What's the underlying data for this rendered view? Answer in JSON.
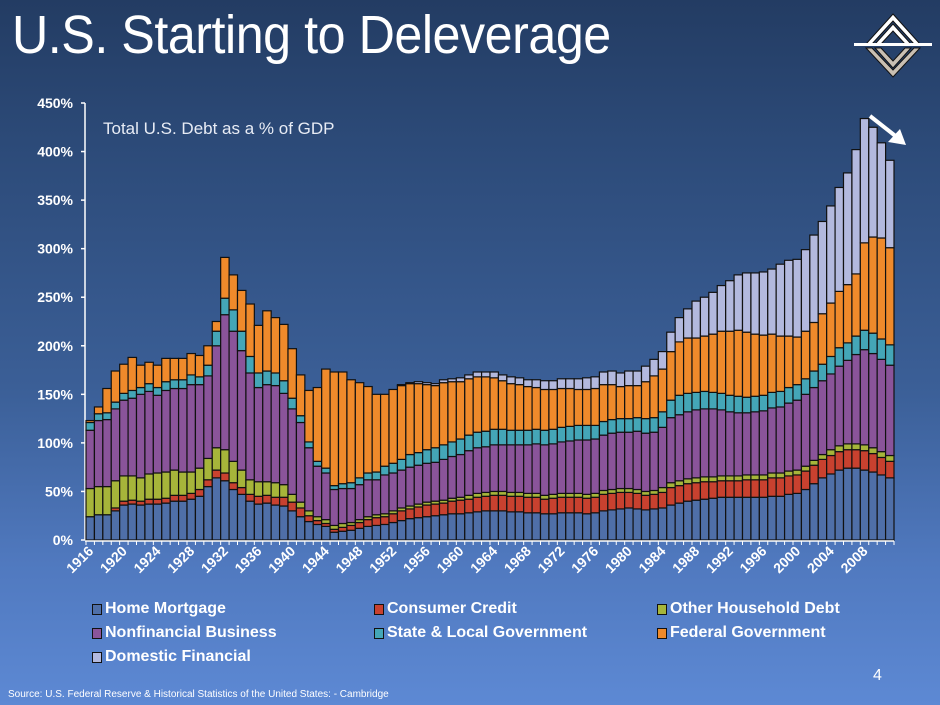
{
  "slide": {
    "title": "U.S. Starting to Deleverage",
    "page_number": "4",
    "source": "Source: U.S.  Federal Reserve & Historical Statistics of the United States: - Cambridge",
    "logo_icon": "diamond-chevron-logo",
    "trend_icon": "down-right-arrow"
  },
  "chart_data": {
    "type": "bar",
    "stacked": true,
    "title": "Total U.S. Debt as a % of GDP",
    "xlabel": "",
    "ylabel": "",
    "ylim": [
      0,
      450
    ],
    "yticks": [
      0,
      50,
      100,
      150,
      200,
      250,
      300,
      350,
      400,
      450
    ],
    "ytick_labels": [
      "0%",
      "50%",
      "100%",
      "150%",
      "200%",
      "250%",
      "300%",
      "350%",
      "400%",
      "450%"
    ],
    "x_tick_labels": [
      "1916",
      "1920",
      "1924",
      "1928",
      "1932",
      "1936",
      "1940",
      "1944",
      "1948",
      "1952",
      "1956",
      "1960",
      "1964",
      "1968",
      "1972",
      "1976",
      "1980",
      "1984",
      "1988",
      "1992",
      "1996",
      "2000",
      "2004",
      "2008"
    ],
    "grid": false,
    "legend_position": "bottom",
    "categories": [
      "1916",
      "1917",
      "1918",
      "1919",
      "1920",
      "1921",
      "1922",
      "1923",
      "1924",
      "1925",
      "1926",
      "1927",
      "1928",
      "1929",
      "1930",
      "1931",
      "1932",
      "1933",
      "1934",
      "1935",
      "1936",
      "1937",
      "1938",
      "1939",
      "1940",
      "1941",
      "1942",
      "1943",
      "1944",
      "1945",
      "1946",
      "1947",
      "1948",
      "1949",
      "1950",
      "1951",
      "1952",
      "1953",
      "1954",
      "1955",
      "1956",
      "1957",
      "1958",
      "1959",
      "1960",
      "1961",
      "1962",
      "1963",
      "1964",
      "1965",
      "1966",
      "1967",
      "1968",
      "1969",
      "1970",
      "1971",
      "1972",
      "1973",
      "1974",
      "1975",
      "1976",
      "1977",
      "1978",
      "1979",
      "1980",
      "1981",
      "1982",
      "1983",
      "1984",
      "1985",
      "1986",
      "1987",
      "1988",
      "1989",
      "1990",
      "1991",
      "1992",
      "1993",
      "1994",
      "1995",
      "1996",
      "1997",
      "1998",
      "1999",
      "2000",
      "2001",
      "2002",
      "2003",
      "2004",
      "2005",
      "2006",
      "2007",
      "2008",
      "2009",
      "2010",
      "2011"
    ],
    "series": [
      {
        "name": "Home Mortgage",
        "color": "#4f6fa8",
        "values": [
          24,
          26,
          26,
          30,
          36,
          37,
          36,
          37,
          37,
          38,
          40,
          40,
          42,
          45,
          55,
          64,
          61,
          52,
          47,
          40,
          37,
          38,
          36,
          35,
          30,
          24,
          19,
          16,
          14,
          8,
          9,
          10,
          12,
          14,
          15,
          16,
          18,
          20,
          22,
          23,
          24,
          25,
          26,
          27,
          27,
          28,
          29,
          30,
          30,
          30,
          29,
          29,
          28,
          28,
          27,
          27,
          28,
          28,
          28,
          27,
          28,
          30,
          31,
          32,
          33,
          32,
          31,
          32,
          33,
          36,
          38,
          40,
          41,
          42,
          43,
          44,
          44,
          44,
          44,
          44,
          44,
          45,
          45,
          47,
          48,
          52,
          58,
          64,
          68,
          72,
          74,
          74,
          72,
          70,
          67,
          64
        ]
      },
      {
        "name": "Consumer Credit",
        "color": "#c8412f",
        "values": [
          0,
          0,
          0,
          3,
          4,
          4,
          4,
          5,
          5,
          5,
          6,
          6,
          6,
          7,
          7,
          8,
          8,
          7,
          7,
          7,
          8,
          8,
          8,
          9,
          9,
          9,
          6,
          4,
          3,
          3,
          4,
          5,
          6,
          7,
          8,
          8,
          9,
          10,
          10,
          11,
          12,
          12,
          12,
          13,
          14,
          14,
          15,
          15,
          16,
          16,
          16,
          16,
          16,
          16,
          15,
          16,
          16,
          16,
          16,
          16,
          16,
          17,
          17,
          17,
          16,
          16,
          15,
          15,
          16,
          18,
          18,
          18,
          18,
          18,
          17,
          17,
          17,
          17,
          18,
          18,
          18,
          19,
          19,
          19,
          19,
          19,
          19,
          19,
          19,
          19,
          19,
          19,
          20,
          19,
          18,
          17
        ]
      },
      {
        "name": "Other Household Debt",
        "color": "#a6b53a",
        "values": [
          29,
          29,
          29,
          28,
          26,
          25,
          24,
          26,
          27,
          27,
          26,
          24,
          22,
          22,
          22,
          23,
          24,
          22,
          18,
          15,
          15,
          14,
          15,
          13,
          8,
          6,
          5,
          4,
          4,
          4,
          4,
          3,
          3,
          3,
          3,
          3,
          3,
          3,
          3,
          3,
          3,
          3,
          3,
          3,
          3,
          4,
          4,
          4,
          4,
          4,
          4,
          4,
          4,
          4,
          4,
          4,
          4,
          4,
          4,
          4,
          4,
          4,
          4,
          4,
          4,
          4,
          4,
          4,
          5,
          5,
          5,
          5,
          5,
          5,
          5,
          5,
          5,
          5,
          5,
          5,
          5,
          5,
          5,
          5,
          5,
          5,
          5,
          5,
          6,
          6,
          6,
          6,
          6,
          6,
          6,
          6
        ]
      },
      {
        "name": "Nonfinancial Business",
        "color": "#8a549a",
        "values": [
          60,
          68,
          69,
          74,
          78,
          80,
          86,
          85,
          80,
          84,
          84,
          86,
          90,
          86,
          85,
          105,
          139,
          134,
          123,
          110,
          97,
          100,
          100,
          94,
          88,
          82,
          65,
          52,
          48,
          37,
          36,
          35,
          36,
          38,
          36,
          40,
          39,
          39,
          40,
          40,
          40,
          40,
          42,
          43,
          44,
          46,
          47,
          47,
          48,
          48,
          49,
          49,
          50,
          51,
          52,
          52,
          53,
          54,
          55,
          56,
          56,
          57,
          58,
          58,
          58,
          60,
          60,
          60,
          62,
          67,
          68,
          69,
          70,
          70,
          70,
          68,
          66,
          65,
          64,
          65,
          66,
          67,
          68,
          70,
          72,
          74,
          75,
          76,
          78,
          82,
          86,
          92,
          98,
          97,
          95,
          93
        ]
      },
      {
        "name": "State & Local Government",
        "color": "#44a6b7",
        "values": [
          8,
          7,
          7,
          7,
          7,
          8,
          7,
          8,
          8,
          9,
          9,
          9,
          10,
          8,
          11,
          15,
          17,
          22,
          20,
          17,
          15,
          14,
          13,
          13,
          11,
          7,
          6,
          5,
          5,
          4,
          5,
          6,
          7,
          7,
          8,
          9,
          10,
          11,
          13,
          13,
          14,
          15,
          15,
          15,
          16,
          16,
          16,
          16,
          16,
          16,
          15,
          15,
          15,
          15,
          15,
          15,
          15,
          15,
          15,
          15,
          14,
          14,
          14,
          14,
          14,
          14,
          15,
          15,
          16,
          18,
          20,
          19,
          18,
          18,
          17,
          17,
          17,
          17,
          16,
          16,
          16,
          16,
          16,
          16,
          16,
          16,
          17,
          17,
          18,
          19,
          18,
          19,
          20,
          21,
          21,
          21
        ]
      },
      {
        "name": "Federal Government",
        "color": "#ef8a2b",
        "values": [
          2,
          7,
          25,
          32,
          30,
          34,
          23,
          22,
          23,
          24,
          22,
          22,
          22,
          22,
          20,
          10,
          42,
          36,
          42,
          54,
          49,
          62,
          57,
          58,
          51,
          42,
          53,
          76,
          102,
          117,
          115,
          106,
          98,
          89,
          80,
          74,
          76,
          76,
          73,
          71,
          67,
          64,
          64,
          62,
          59,
          58,
          57,
          56,
          53,
          50,
          48,
          47,
          45,
          43,
          42,
          41,
          40,
          39,
          37,
          37,
          38,
          38,
          36,
          33,
          34,
          33,
          38,
          43,
          44,
          50,
          55,
          57,
          56,
          57,
          60,
          64,
          66,
          68,
          67,
          64,
          62,
          60,
          57,
          53,
          49,
          49,
          50,
          52,
          55,
          58,
          60,
          64,
          90,
          99,
          104,
          100
        ]
      },
      {
        "name": "Domestic Financial",
        "color": "#b3b9de",
        "values": [
          0,
          0,
          0,
          0,
          0,
          0,
          0,
          0,
          0,
          0,
          0,
          0,
          0,
          0,
          0,
          0,
          0,
          0,
          0,
          0,
          0,
          0,
          0,
          0,
          0,
          0,
          0,
          0,
          0,
          0,
          0,
          0,
          0,
          0,
          0,
          0,
          0,
          1,
          1,
          2,
          2,
          2,
          3,
          3,
          4,
          4,
          5,
          5,
          6,
          6,
          7,
          7,
          7,
          8,
          9,
          9,
          10,
          10,
          11,
          12,
          12,
          13,
          14,
          14,
          15,
          15,
          16,
          17,
          18,
          20,
          25,
          30,
          38,
          40,
          43,
          47,
          52,
          57,
          61,
          63,
          65,
          67,
          74,
          78,
          80,
          84,
          90,
          95,
          100,
          107,
          115,
          128,
          128,
          113,
          98,
          90
        ]
      }
    ]
  }
}
